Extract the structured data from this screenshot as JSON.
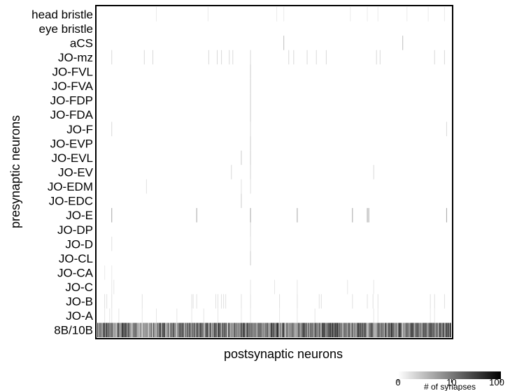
{
  "chart_data": {
    "type": "heatmap",
    "title": "",
    "xlabel": "postsynaptic neurons",
    "ylabel": "presynaptic neurons",
    "rows": [
      "head bristle",
      "eye bristle",
      "aCS",
      "JO-mz",
      "JO-FVL",
      "JO-FVA",
      "JO-FDP",
      "JO-FDA",
      "JO-F",
      "JO-EVP",
      "JO-EVL",
      "JO-EV",
      "JO-EDM",
      "JO-EDC",
      "JO-E",
      "JO-DP",
      "JO-D",
      "JO-CL",
      "JO-CA",
      "JO-C",
      "JO-B",
      "JO-A",
      "8B/10B"
    ],
    "num_columns": 500,
    "colorbar": {
      "label": "# of synapses",
      "ticks": [
        0,
        10,
        100
      ],
      "range": [
        0,
        100
      ],
      "colors": [
        "#ffffff",
        "#000000"
      ]
    },
    "cells": [
      {
        "row": "head bristle",
        "cols": [
          83,
          156,
          253,
          263,
          357,
          381,
          396,
          437,
          467,
          490
        ],
        "value": 8
      },
      {
        "row": "aCS",
        "cols": [
          263,
          431
        ],
        "value": 25
      },
      {
        "row": "JO-mz",
        "cols": [
          20,
          66,
          78,
          157,
          169,
          175,
          186,
          191,
          216,
          270,
          277,
          296,
          309,
          323,
          394,
          399,
          476,
          490
        ],
        "value": 15
      },
      {
        "row": "JO-FVL",
        "cols": [
          216
        ],
        "value": 20
      },
      {
        "row": "JO-FVA",
        "cols": [
          216
        ],
        "value": 20
      },
      {
        "row": "JO-FDP",
        "cols": [
          216
        ],
        "value": 20
      },
      {
        "row": "JO-FDA",
        "cols": [
          216
        ],
        "value": 20
      },
      {
        "row": "JO-F",
        "cols": [
          20,
          216,
          493
        ],
        "value": 15
      },
      {
        "row": "JO-EVP",
        "cols": [
          216
        ],
        "value": 20
      },
      {
        "row": "JO-EVL",
        "cols": [
          203,
          216
        ],
        "value": 20
      },
      {
        "row": "JO-EV",
        "cols": [
          189,
          216,
          216,
          390
        ],
        "value": 15
      },
      {
        "row": "JO-EDM",
        "cols": [
          69,
          203,
          216
        ],
        "value": 12
      },
      {
        "row": "JO-EDC",
        "cols": [
          203
        ],
        "value": 20
      },
      {
        "row": "JO-E",
        "cols": [
          20,
          140,
          216,
          282,
          360,
          381,
          383,
          493
        ],
        "value": 35
      },
      {
        "row": "JO-DP",
        "cols": [
          216
        ],
        "value": 15
      },
      {
        "row": "JO-D",
        "cols": [
          20,
          216
        ],
        "value": 12
      },
      {
        "row": "JO-CL",
        "cols": [
          216
        ],
        "value": 20
      },
      {
        "row": "JO-CA",
        "cols": [
          10,
          20
        ],
        "value": 8
      },
      {
        "row": "JO-C",
        "cols": [
          20,
          23,
          216,
          250,
          282,
          353,
          390
        ],
        "value": 10
      },
      {
        "row": "JO-B",
        "cols": [
          10,
          13,
          20,
          63,
          133,
          135,
          140,
          167,
          170,
          175,
          178,
          181,
          203,
          216,
          257,
          282,
          313,
          316,
          360,
          381,
          389,
          396,
          470,
          476,
          490
        ],
        "value": 12
      },
      {
        "row": "JO-A",
        "cols": [
          10,
          17,
          20,
          30,
          63,
          83,
          112,
          133,
          150,
          170,
          203,
          216,
          257,
          282,
          307,
          390,
          396,
          470,
          476
        ],
        "value": 10
      },
      {
        "row": "8B/10B",
        "cols": "all",
        "value": 60
      }
    ]
  }
}
